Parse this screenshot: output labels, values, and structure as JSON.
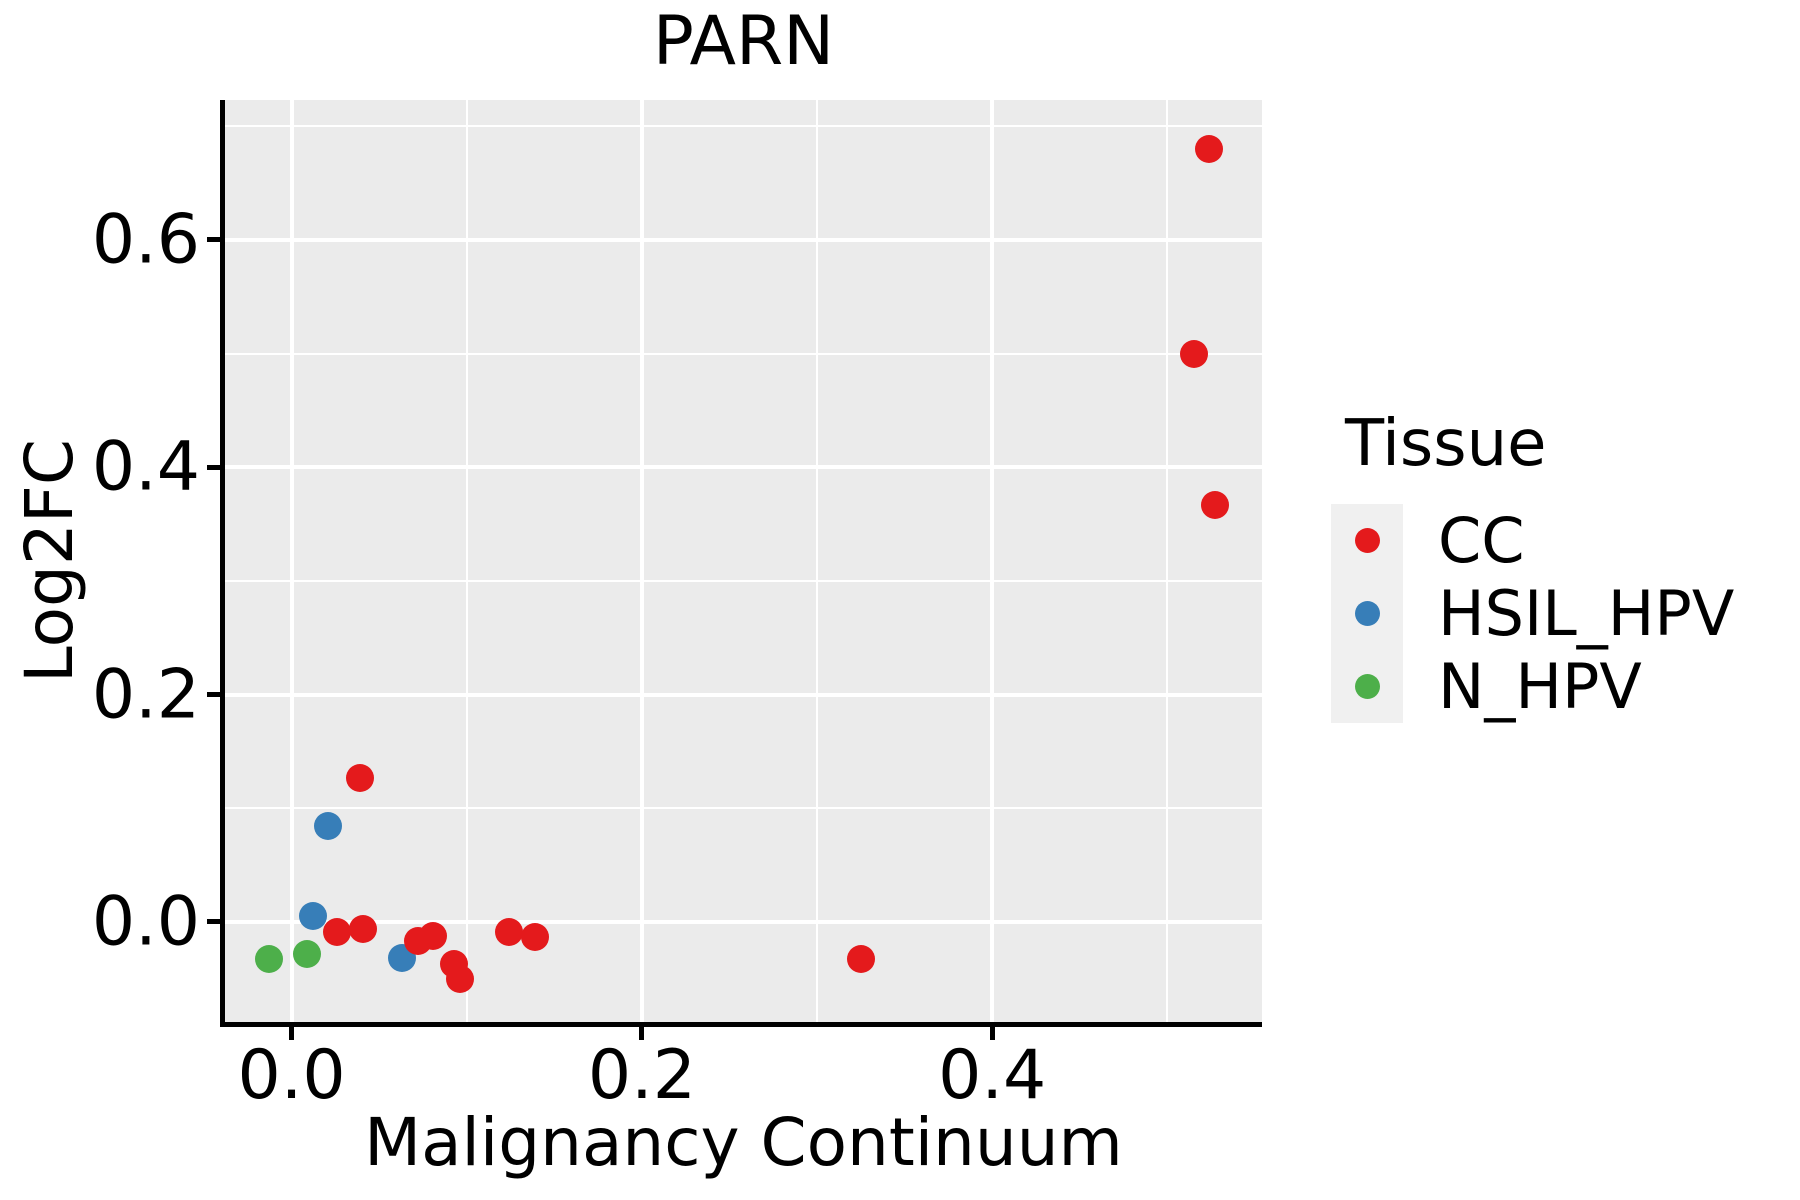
{
  "chart_data": {
    "type": "scatter",
    "title": "PARN",
    "xlabel": "Malignancy Continuum",
    "ylabel": "Log2FC",
    "xlim": [
      -0.038,
      0.554
    ],
    "ylim": [
      -0.088,
      0.723
    ],
    "x_ticks": [
      0.0,
      0.2,
      0.4
    ],
    "x_tick_labels": [
      "0.0",
      "0.2",
      "0.4"
    ],
    "x_minor_ticks": [
      0.1,
      0.3,
      0.5
    ],
    "y_ticks": [
      0.0,
      0.2,
      0.4,
      0.6
    ],
    "y_tick_labels": [
      "0.0",
      "0.2",
      "0.4",
      "0.6"
    ],
    "y_minor_ticks": [
      0.1,
      0.3,
      0.5,
      0.7
    ],
    "grid": true,
    "legend": {
      "title": "Tissue",
      "position": "right"
    },
    "style": {
      "panel_bg": "#EBEBEB",
      "grid_color": "#FFFFFF",
      "axis_color": "#000000",
      "text_color": "#000000",
      "legend_key_bg": "#F0F0F0"
    },
    "series": [
      {
        "name": "CC",
        "color": "#E41A1C",
        "points": [
          [
            0.524,
            0.68
          ],
          [
            0.515,
            0.5
          ],
          [
            0.527,
            0.367
          ],
          [
            0.039,
            0.127
          ],
          [
            0.026,
            -0.009
          ],
          [
            0.041,
            -0.006
          ],
          [
            0.072,
            -0.017
          ],
          [
            0.081,
            -0.012
          ],
          [
            0.093,
            -0.037
          ],
          [
            0.096,
            -0.05
          ],
          [
            0.124,
            -0.009
          ],
          [
            0.139,
            -0.013
          ],
          [
            0.325,
            -0.033
          ]
        ]
      },
      {
        "name": "HSIL_HPV",
        "color": "#377EB8",
        "points": [
          [
            0.021,
            0.084
          ],
          [
            0.012,
            0.005
          ],
          [
            0.063,
            -0.032
          ]
        ]
      },
      {
        "name": "N_HPV",
        "color": "#4DAF4A",
        "points": [
          [
            -0.013,
            -0.033
          ],
          [
            0.009,
            -0.028
          ]
        ]
      }
    ]
  }
}
